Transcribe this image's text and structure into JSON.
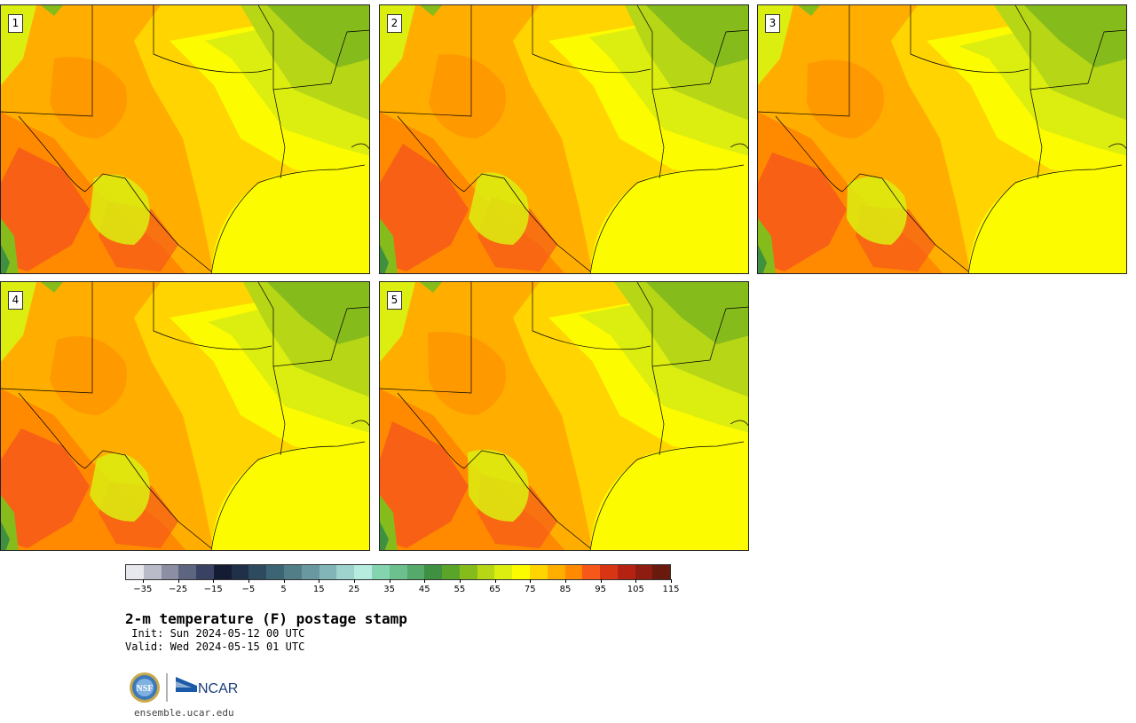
{
  "panels": [
    {
      "label": "1",
      "variant": 0
    },
    {
      "label": "2",
      "variant": 1
    },
    {
      "label": "3",
      "variant": 2
    },
    {
      "label": "4",
      "variant": 3
    },
    {
      "label": "5",
      "variant": 4
    }
  ],
  "colorbar": {
    "colors": [
      "#e6e8ee",
      "#b9bbc8",
      "#8c8fa3",
      "#5d6580",
      "#3a4263",
      "#141c33",
      "#1f3048",
      "#2e4a5e",
      "#3d6472",
      "#527e88",
      "#6a98a0",
      "#81b5b8",
      "#9ed2cc",
      "#b6ecdf",
      "#84d4b0",
      "#6cc08e",
      "#55a96a",
      "#3f9141",
      "#5ba42a",
      "#86bb1c",
      "#b6d616",
      "#dcee10",
      "#fdfb00",
      "#ffd400",
      "#ffae00",
      "#ff8a00",
      "#f7581a",
      "#d83514",
      "#b42312",
      "#8f1c10",
      "#6a1a0d"
    ],
    "ticks": [
      "−35",
      "−25",
      "−15",
      "−5",
      "5",
      "15",
      "25",
      "35",
      "45",
      "55",
      "65",
      "75",
      "85",
      "95",
      "105",
      "115"
    ]
  },
  "title": "2-m temperature (F) postage stamp",
  "init": " Init: Sun 2024-05-12 00 UTC",
  "valid": "Valid: Wed 2024-05-15 01 UTC",
  "logos": {
    "nsf": "NSF",
    "ncar": "NCAR"
  },
  "url": "ensemble.ucar.edu"
}
